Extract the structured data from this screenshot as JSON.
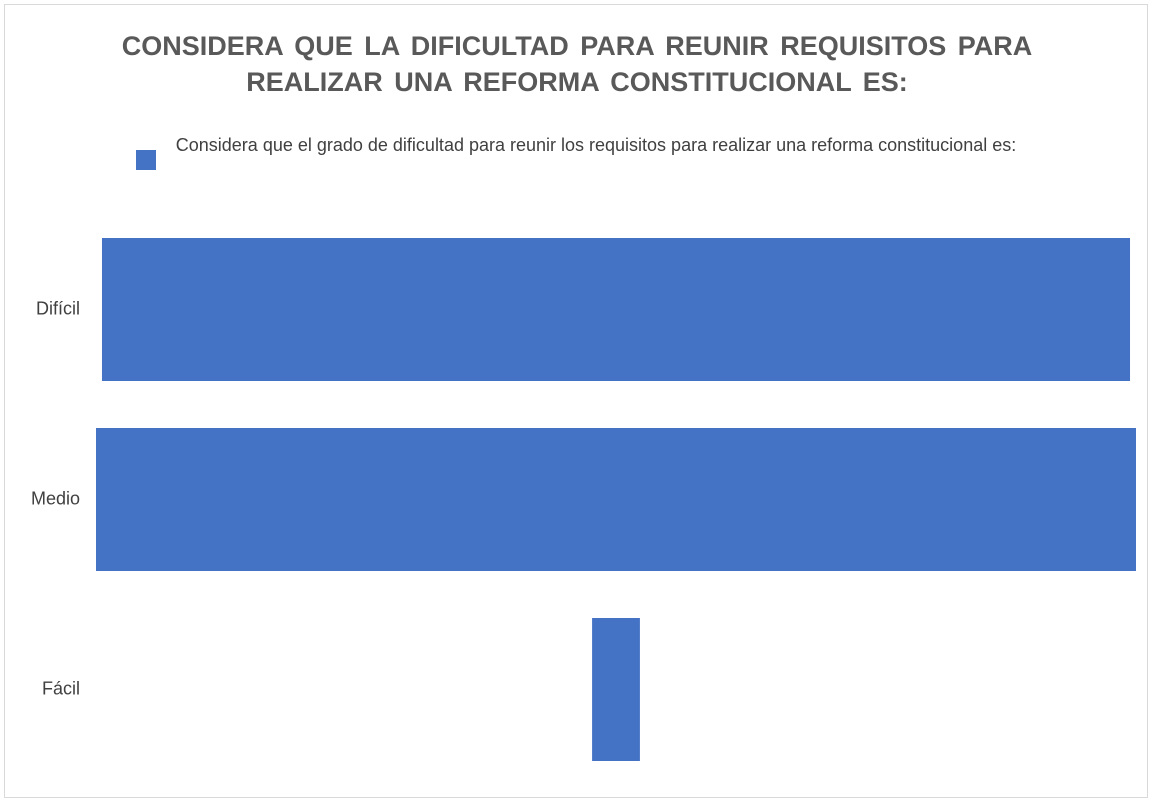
{
  "chart_data": {
    "type": "funnel",
    "title": "CONSIDERA QUE LA DIFICULTAD PARA REUNIR REQUISITOS PARA REALIZAR UNA REFORMA CONSTITUCIONAL ES:",
    "categories": [
      "Difícil",
      "Medio",
      "Fácil"
    ],
    "series": [
      {
        "name": "Considera que el grado de dificultad para reunir los requisitos para realizar una reforma constitucional es:",
        "color": "#4472c4",
        "values": [
          86,
          87,
          4
        ]
      }
    ]
  }
}
